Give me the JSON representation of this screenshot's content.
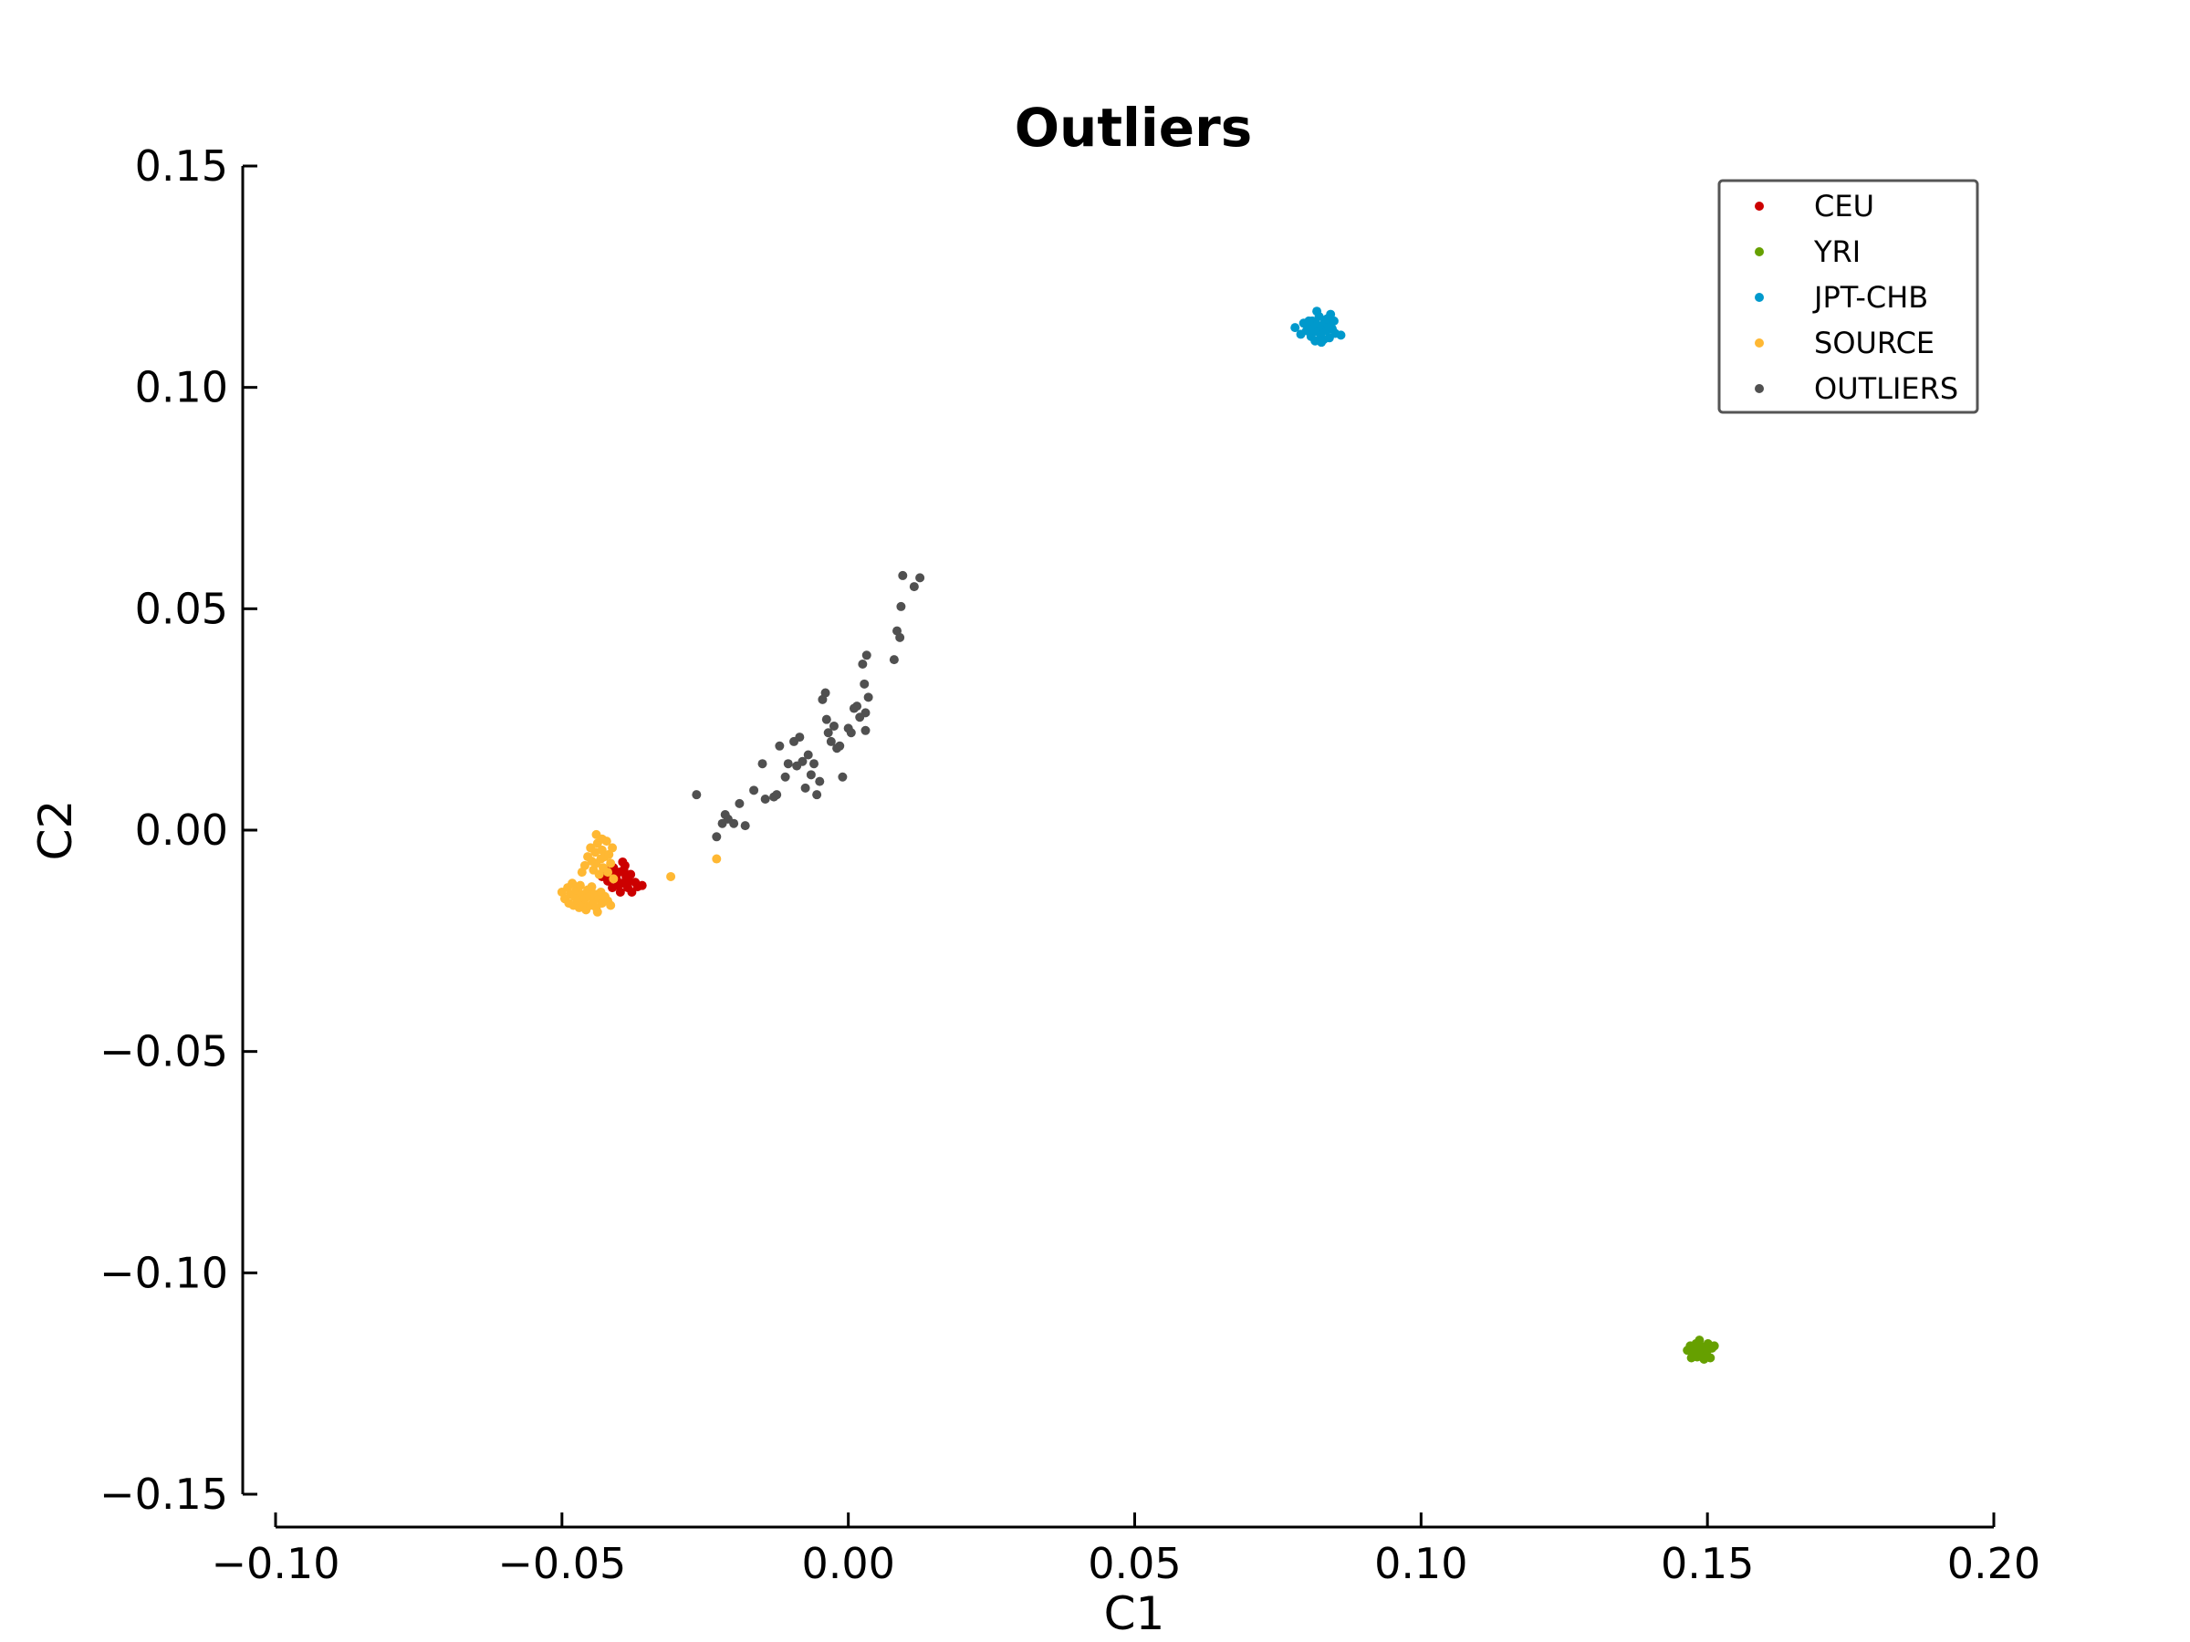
{
  "chart_data": {
    "type": "scatter",
    "title": "Outliers",
    "xlabel": "C1",
    "ylabel": "C2",
    "xlim": [
      -0.1,
      0.2
    ],
    "ylim": [
      -0.15,
      0.15
    ],
    "x_ticks": [
      -0.1,
      -0.05,
      0.0,
      0.05,
      0.1,
      0.15,
      0.2
    ],
    "y_ticks": [
      0.15,
      0.1,
      0.05,
      0.0,
      -0.05,
      -0.1,
      -0.15
    ],
    "x_tick_labels": [
      "−0.10",
      "−0.05",
      "0.00",
      "0.05",
      "0.10",
      "0.15",
      "0.20"
    ],
    "y_tick_labels": [
      "0.15",
      "0.10",
      "0.05",
      "0.00",
      "−0.05",
      "−0.10",
      "−0.15"
    ],
    "grid": false,
    "legend_position": "top-right",
    "series": [
      {
        "name": "CEU",
        "color": "#cc0000",
        "points": [
          [
            -0.0425,
            -0.009
          ],
          [
            -0.0418,
            -0.0102
          ],
          [
            -0.041,
            -0.0085
          ],
          [
            -0.0405,
            -0.011
          ],
          [
            -0.04,
            -0.0095
          ],
          [
            -0.0395,
            -0.012
          ],
          [
            -0.039,
            -0.008
          ],
          [
            -0.0388,
            -0.0105
          ],
          [
            -0.0385,
            -0.013
          ],
          [
            -0.038,
            -0.01
          ],
          [
            -0.0378,
            -0.014
          ],
          [
            -0.0372,
            -0.0118
          ],
          [
            -0.0368,
            -0.0128
          ],
          [
            -0.0412,
            -0.013
          ],
          [
            -0.042,
            -0.0115
          ],
          [
            -0.043,
            -0.0105
          ],
          [
            -0.0398,
            -0.014
          ],
          [
            -0.0392,
            -0.009
          ],
          [
            -0.0402,
            -0.0125
          ],
          [
            -0.0415,
            -0.0095
          ],
          [
            -0.0383,
            -0.0115
          ],
          [
            -0.0407,
            -0.0108
          ],
          [
            -0.0394,
            -0.0072
          ],
          [
            -0.036,
            -0.0125
          ]
        ]
      },
      {
        "name": "YRI",
        "color": "#66a000",
        "points": [
          [
            0.1465,
            -0.1175
          ],
          [
            0.147,
            -0.1165
          ],
          [
            0.1475,
            -0.1185
          ],
          [
            0.1478,
            -0.117
          ],
          [
            0.148,
            -0.116
          ],
          [
            0.1482,
            -0.119
          ],
          [
            0.1485,
            -0.1178
          ],
          [
            0.1488,
            -0.1165
          ],
          [
            0.149,
            -0.1182
          ],
          [
            0.1492,
            -0.1172
          ],
          [
            0.1495,
            -0.1168
          ],
          [
            0.1498,
            -0.1188
          ],
          [
            0.15,
            -0.1175
          ],
          [
            0.1503,
            -0.1168
          ],
          [
            0.1505,
            -0.1192
          ],
          [
            0.1508,
            -0.117
          ],
          [
            0.1472,
            -0.1192
          ],
          [
            0.1486,
            -0.1152
          ],
          [
            0.1494,
            -0.1195
          ],
          [
            0.1501,
            -0.116
          ],
          [
            0.1476,
            -0.118
          ],
          [
            0.1484,
            -0.1186
          ],
          [
            0.1512,
            -0.1165
          ]
        ]
      },
      {
        "name": "JPT-CHB",
        "color": "#0099cc",
        "points": [
          [
            0.078,
            0.1135
          ],
          [
            0.079,
            0.112
          ],
          [
            0.0795,
            0.1145
          ],
          [
            0.08,
            0.1128
          ],
          [
            0.0805,
            0.1138
          ],
          [
            0.0808,
            0.1115
          ],
          [
            0.081,
            0.115
          ],
          [
            0.0812,
            0.113
          ],
          [
            0.0815,
            0.1105
          ],
          [
            0.0818,
            0.1142
          ],
          [
            0.082,
            0.1125
          ],
          [
            0.0822,
            0.116
          ],
          [
            0.0825,
            0.1118
          ],
          [
            0.0828,
            0.1135
          ],
          [
            0.083,
            0.1108
          ],
          [
            0.0832,
            0.1148
          ],
          [
            0.0835,
            0.1128
          ],
          [
            0.0838,
            0.114
          ],
          [
            0.084,
            0.1112
          ],
          [
            0.0842,
            0.1165
          ],
          [
            0.0845,
            0.1132
          ],
          [
            0.0848,
            0.115
          ],
          [
            0.085,
            0.1122
          ],
          [
            0.086,
            0.1118
          ],
          [
            0.0818,
            0.1172
          ],
          [
            0.0826,
            0.1102
          ],
          [
            0.0836,
            0.1155
          ],
          [
            0.0804,
            0.115
          ]
        ]
      },
      {
        "name": "SOURCE",
        "color": "#ffb833",
        "points": [
          [
            -0.05,
            -0.014
          ],
          [
            -0.0495,
            -0.0155
          ],
          [
            -0.049,
            -0.013
          ],
          [
            -0.0488,
            -0.0165
          ],
          [
            -0.0485,
            -0.0145
          ],
          [
            -0.0482,
            -0.012
          ],
          [
            -0.048,
            -0.017
          ],
          [
            -0.0478,
            -0.015
          ],
          [
            -0.0475,
            -0.0135
          ],
          [
            -0.0472,
            -0.016
          ],
          [
            -0.047,
            -0.0175
          ],
          [
            -0.0468,
            -0.0125
          ],
          [
            -0.0465,
            -0.0145
          ],
          [
            -0.0462,
            -0.0165
          ],
          [
            -0.046,
            -0.0155
          ],
          [
            -0.0458,
            -0.018
          ],
          [
            -0.0455,
            -0.0135
          ],
          [
            -0.0452,
            -0.015
          ],
          [
            -0.045,
            -0.017
          ],
          [
            -0.0448,
            -0.0128
          ],
          [
            -0.0445,
            -0.016
          ],
          [
            -0.0442,
            -0.0145
          ],
          [
            -0.044,
            -0.0175
          ],
          [
            -0.0438,
            -0.0185
          ],
          [
            -0.0435,
            -0.0155
          ],
          [
            -0.0432,
            -0.014
          ],
          [
            -0.043,
            -0.0165
          ],
          [
            -0.0425,
            -0.015
          ],
          [
            -0.042,
            -0.016
          ],
          [
            -0.0415,
            -0.017
          ],
          [
            -0.046,
            -0.008
          ],
          [
            -0.0455,
            -0.006
          ],
          [
            -0.045,
            -0.004
          ],
          [
            -0.0448,
            -0.007
          ],
          [
            -0.0445,
            -0.009
          ],
          [
            -0.0442,
            -0.005
          ],
          [
            -0.044,
            -0.0075
          ],
          [
            -0.0438,
            -0.003
          ],
          [
            -0.0435,
            -0.01
          ],
          [
            -0.0432,
            -0.0065
          ],
          [
            -0.043,
            -0.0045
          ],
          [
            -0.0428,
            -0.0085
          ],
          [
            -0.0425,
            -0.006
          ],
          [
            -0.0422,
            -0.0025
          ],
          [
            -0.042,
            -0.0095
          ],
          [
            -0.0418,
            -0.0055
          ],
          [
            -0.0415,
            -0.0075
          ],
          [
            -0.0412,
            -0.004
          ],
          [
            -0.044,
            -0.001
          ],
          [
            -0.043,
            -0.002
          ],
          [
            -0.0465,
            -0.0095
          ],
          [
            -0.041,
            -0.011
          ],
          [
            -0.031,
            -0.0105
          ],
          [
            -0.023,
            -0.0065
          ]
        ]
      },
      {
        "name": "OUTLIERS",
        "color": "#505050",
        "points": [
          [
            -0.0265,
            0.008
          ],
          [
            -0.023,
            -0.0015
          ],
          [
            -0.022,
            0.0015
          ],
          [
            -0.0215,
            0.0035
          ],
          [
            -0.021,
            0.0025
          ],
          [
            -0.02,
            0.0015
          ],
          [
            -0.019,
            0.006
          ],
          [
            -0.018,
            0.001
          ],
          [
            -0.0165,
            0.009
          ],
          [
            -0.015,
            0.015
          ],
          [
            -0.0145,
            0.007
          ],
          [
            -0.013,
            0.0075
          ],
          [
            -0.0125,
            0.008
          ],
          [
            -0.012,
            0.019
          ],
          [
            -0.011,
            0.012
          ],
          [
            -0.0105,
            0.015
          ],
          [
            -0.0095,
            0.02
          ],
          [
            -0.009,
            0.0145
          ],
          [
            -0.0085,
            0.021
          ],
          [
            -0.008,
            0.0155
          ],
          [
            -0.0075,
            0.0095
          ],
          [
            -0.007,
            0.017
          ],
          [
            -0.0065,
            0.0125
          ],
          [
            -0.006,
            0.015
          ],
          [
            -0.0055,
            0.008
          ],
          [
            -0.005,
            0.011
          ],
          [
            -0.0045,
            0.0295
          ],
          [
            -0.004,
            0.031
          ],
          [
            -0.0038,
            0.025
          ],
          [
            -0.0035,
            0.022
          ],
          [
            -0.003,
            0.02
          ],
          [
            -0.0025,
            0.0235
          ],
          [
            -0.002,
            0.0185
          ],
          [
            -0.001,
            0.012
          ],
          [
            0.0,
            0.023
          ],
          [
            0.0005,
            0.022
          ],
          [
            0.001,
            0.0275
          ],
          [
            0.0015,
            0.028
          ],
          [
            0.002,
            0.0255
          ],
          [
            0.0025,
            0.0375
          ],
          [
            0.0028,
            0.033
          ],
          [
            0.003,
            0.0265
          ],
          [
            0.0032,
            0.0395
          ],
          [
            0.0035,
            0.03
          ],
          [
            0.008,
            0.0385
          ],
          [
            0.0085,
            0.045
          ],
          [
            0.009,
            0.0435
          ],
          [
            0.0092,
            0.0505
          ],
          [
            0.0095,
            0.0575
          ],
          [
            0.0115,
            0.055
          ],
          [
            0.0125,
            0.057
          ],
          [
            0.003,
            0.0225
          ],
          [
            -0.0015,
            0.019
          ]
        ]
      }
    ]
  }
}
